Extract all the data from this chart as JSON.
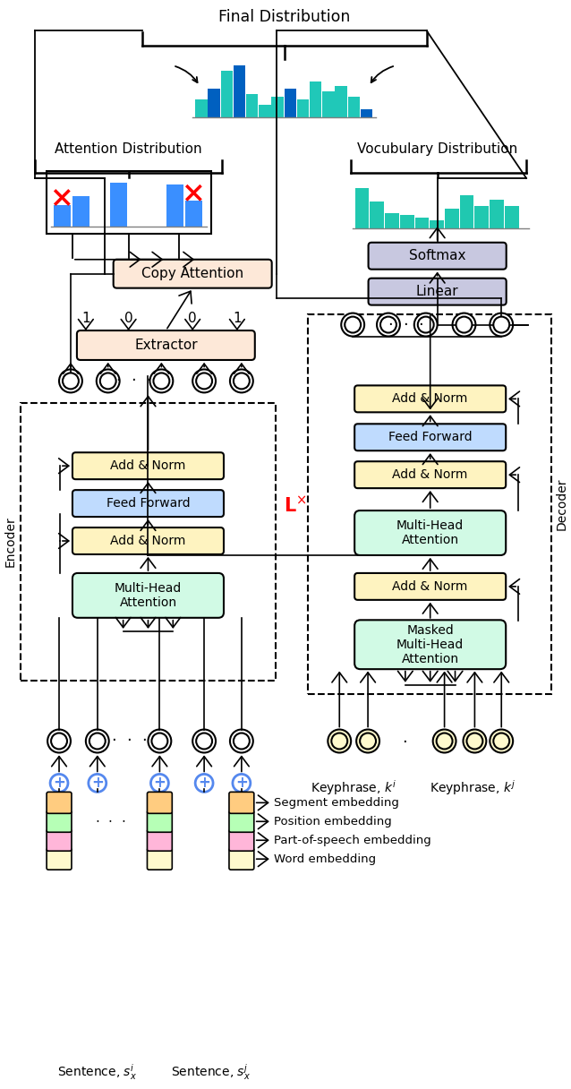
{
  "title": "Final Distribution",
  "attn_label": "Attention Distribution",
  "vocab_label": "Vocubulary Distribution",
  "final_dist_bars": [
    0.35,
    0.55,
    0.9,
    1.0,
    0.45,
    0.25,
    0.4,
    0.55,
    0.35,
    0.7,
    0.5,
    0.6,
    0.4,
    0.15
  ],
  "final_dist_colors": [
    "#20c8b8",
    "#0060c0",
    "#20c8b8",
    "#0060c0",
    "#20c8b8",
    "#20c8b8",
    "#20c8b8",
    "#0060c0",
    "#20c8b8",
    "#20c8b8",
    "#20c8b8",
    "#20c8b8",
    "#20c8b8",
    "#0060c0"
  ],
  "attn_dist_bars": [
    0.45,
    0.65,
    0.0,
    0.95,
    0.0,
    0.0,
    0.9,
    0.55
  ],
  "vocab_dist_bars": [
    0.9,
    0.6,
    0.35,
    0.3,
    0.25,
    0.18,
    0.45,
    0.75,
    0.5,
    0.65,
    0.5
  ],
  "copy_attn_color": "#fde8d8",
  "softmax_color": "#c8c8e0",
  "linear_color": "#c8c8e0",
  "extractor_color": "#fde8d8",
  "add_norm_color": "#fef3c0",
  "feed_forward_color": "#bfdbfe",
  "multi_head_color": "#d1fae5",
  "masked_mha_color": "#d1fae5",
  "embed_colors": [
    "#fffacd",
    "#ffb6d9",
    "#b6ffb6",
    "#ffcc80"
  ],
  "enc_label": "Encoder",
  "dec_label": "Decoder",
  "lx_label": "L",
  "embed_labels": [
    "Word embedding",
    "Part-of-speech embedding",
    "Position embedding",
    "Segment embedding"
  ]
}
